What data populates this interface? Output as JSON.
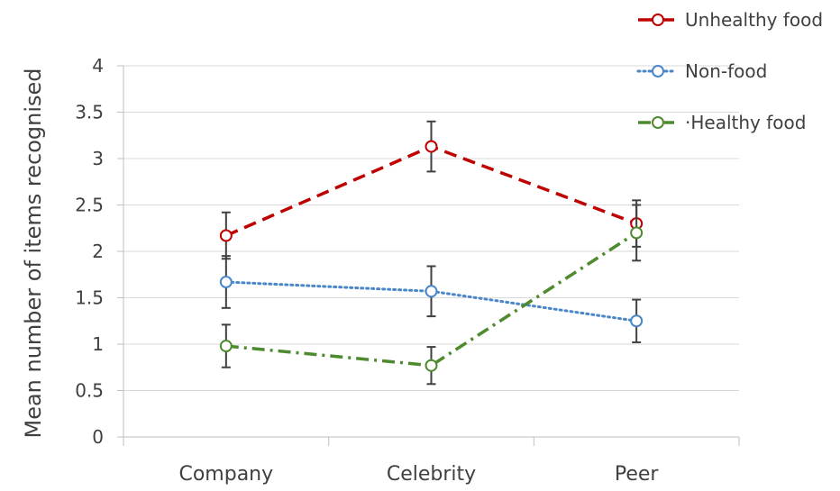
{
  "chart_data": {
    "type": "line",
    "title": "",
    "xlabel": "",
    "ylabel": "Mean number of items recognised",
    "ylim": [
      0,
      4
    ],
    "y_ticks": [
      "0",
      "0.5",
      "1",
      "1.5",
      "2",
      "2.5",
      "3",
      "3.5",
      "4"
    ],
    "categories": [
      "Company",
      "Celebrity",
      "Peer"
    ],
    "grid": true,
    "legend_position": "top-right",
    "series": [
      {
        "name": "Unhealthy food",
        "legend_label": "Unhealthy food",
        "color": "#c00000",
        "line_style": "dashed",
        "values": [
          2.17,
          3.13,
          2.3
        ],
        "error": [
          0.25,
          0.27,
          0.25
        ]
      },
      {
        "name": "Non-food",
        "legend_label": "Non-food",
        "color": "#4a86c8",
        "line_style": "dotted",
        "values": [
          1.67,
          1.57,
          1.25
        ],
        "error": [
          0.28,
          0.27,
          0.23
        ]
      },
      {
        "name": "Healthy food",
        "legend_label": "·Healthy food",
        "color": "#4e8a2e",
        "line_style": "dash-dot",
        "values": [
          0.98,
          0.77,
          2.2
        ],
        "error": [
          0.23,
          0.2,
          0.3
        ]
      }
    ]
  }
}
